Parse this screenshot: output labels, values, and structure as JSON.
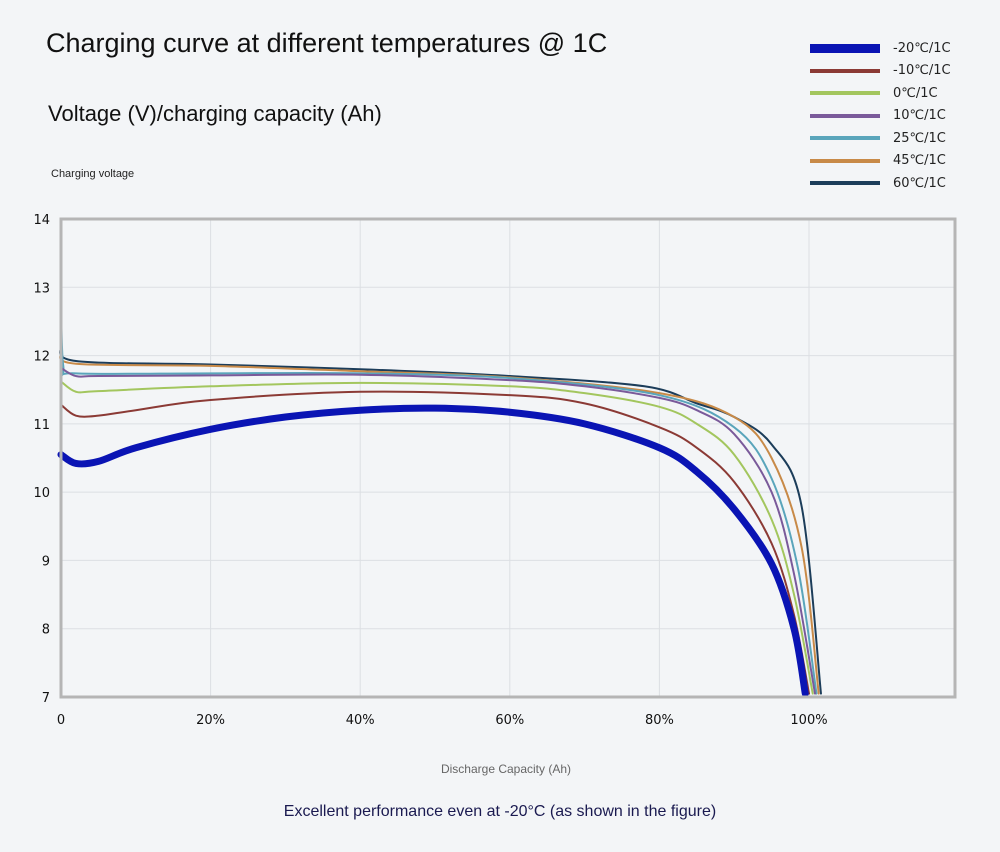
{
  "chart_data": {
    "type": "line",
    "title": "Charging curve at different temperatures @ 1C",
    "subtitle": "Voltage (V)/charging capacity (Ah)",
    "ylabel": "Charging voltage",
    "xlabel": "Discharge Capacity (Ah)",
    "caption": "Excellent performance even at -20°C (as shown in the figure)",
    "xlim": [
      0,
      119.5
    ],
    "ylim": [
      7,
      14
    ],
    "x_ticks": [
      0,
      20,
      40,
      60,
      80,
      100
    ],
    "x_tick_labels": [
      "0",
      "20%",
      "40%",
      "60%",
      "80%",
      "100%"
    ],
    "y_ticks": [
      7,
      8,
      9,
      10,
      11,
      12,
      13,
      14
    ],
    "y_tick_labels": [
      "7",
      "8",
      "9",
      "10",
      "11",
      "12",
      "13",
      "14"
    ],
    "grid": true,
    "legend_position": "top-right",
    "series": [
      {
        "name": "-20℃/1C",
        "color": "#0a14b4",
        "emphasis": "thick",
        "x": [
          0,
          2,
          5,
          10,
          20,
          30,
          40,
          50,
          60,
          70,
          80,
          85,
          90,
          95,
          98,
          99.5
        ],
        "y": [
          10.55,
          10.42,
          10.45,
          10.65,
          10.92,
          11.1,
          11.2,
          11.23,
          11.17,
          11.0,
          10.65,
          10.3,
          9.75,
          8.95,
          8.0,
          7.05
        ]
      },
      {
        "name": "-10℃/1C",
        "color": "#8b3a35",
        "x": [
          0,
          2,
          5,
          10,
          20,
          40,
          60,
          70,
          80,
          85,
          90,
          95,
          98,
          100
        ],
        "y": [
          11.28,
          11.12,
          11.12,
          11.2,
          11.35,
          11.47,
          11.42,
          11.3,
          10.95,
          10.65,
          10.15,
          9.25,
          8.2,
          7.05
        ]
      },
      {
        "name": "0℃/1C",
        "color": "#a3c65e",
        "x": [
          0,
          2,
          5,
          20,
          40,
          60,
          70,
          80,
          85,
          90,
          95,
          98,
          100.5
        ],
        "y": [
          11.62,
          11.47,
          11.48,
          11.55,
          11.6,
          11.55,
          11.45,
          11.25,
          11.0,
          10.55,
          9.6,
          8.5,
          7.05
        ]
      },
      {
        "name": "10℃/1C",
        "color": "#7a5a9a",
        "x": [
          0,
          2,
          5,
          20,
          40,
          60,
          70,
          80,
          85,
          90,
          95,
          98,
          100.8
        ],
        "y": [
          11.82,
          11.7,
          11.7,
          11.71,
          11.72,
          11.64,
          11.55,
          11.38,
          11.2,
          10.85,
          10.0,
          8.8,
          7.05
        ]
      },
      {
        "name": "25℃/1C",
        "color": "#5aa5bb",
        "x": [
          0,
          0.3,
          2,
          20,
          40,
          60,
          80,
          90,
          95,
          98.5,
          101
        ],
        "y": [
          13.2,
          11.85,
          11.74,
          11.74,
          11.74,
          11.67,
          11.42,
          10.95,
          10.2,
          8.9,
          7.05
        ]
      },
      {
        "name": "45℃/1C",
        "color": "#c88a48",
        "x": [
          0,
          2,
          20,
          40,
          60,
          80,
          90,
          95,
          99,
          101.3
        ],
        "y": [
          12.05,
          11.88,
          11.85,
          11.77,
          11.68,
          11.45,
          11.1,
          10.5,
          9.2,
          7.05
        ]
      },
      {
        "name": "60℃/1C",
        "color": "#1c3d5a",
        "x": [
          0,
          2,
          20,
          40,
          60,
          78,
          85,
          90,
          95,
          99,
          101.6
        ],
        "y": [
          12.15,
          11.92,
          11.87,
          11.8,
          11.7,
          11.55,
          11.3,
          11.1,
          10.7,
          9.8,
          7.05
        ]
      }
    ]
  }
}
